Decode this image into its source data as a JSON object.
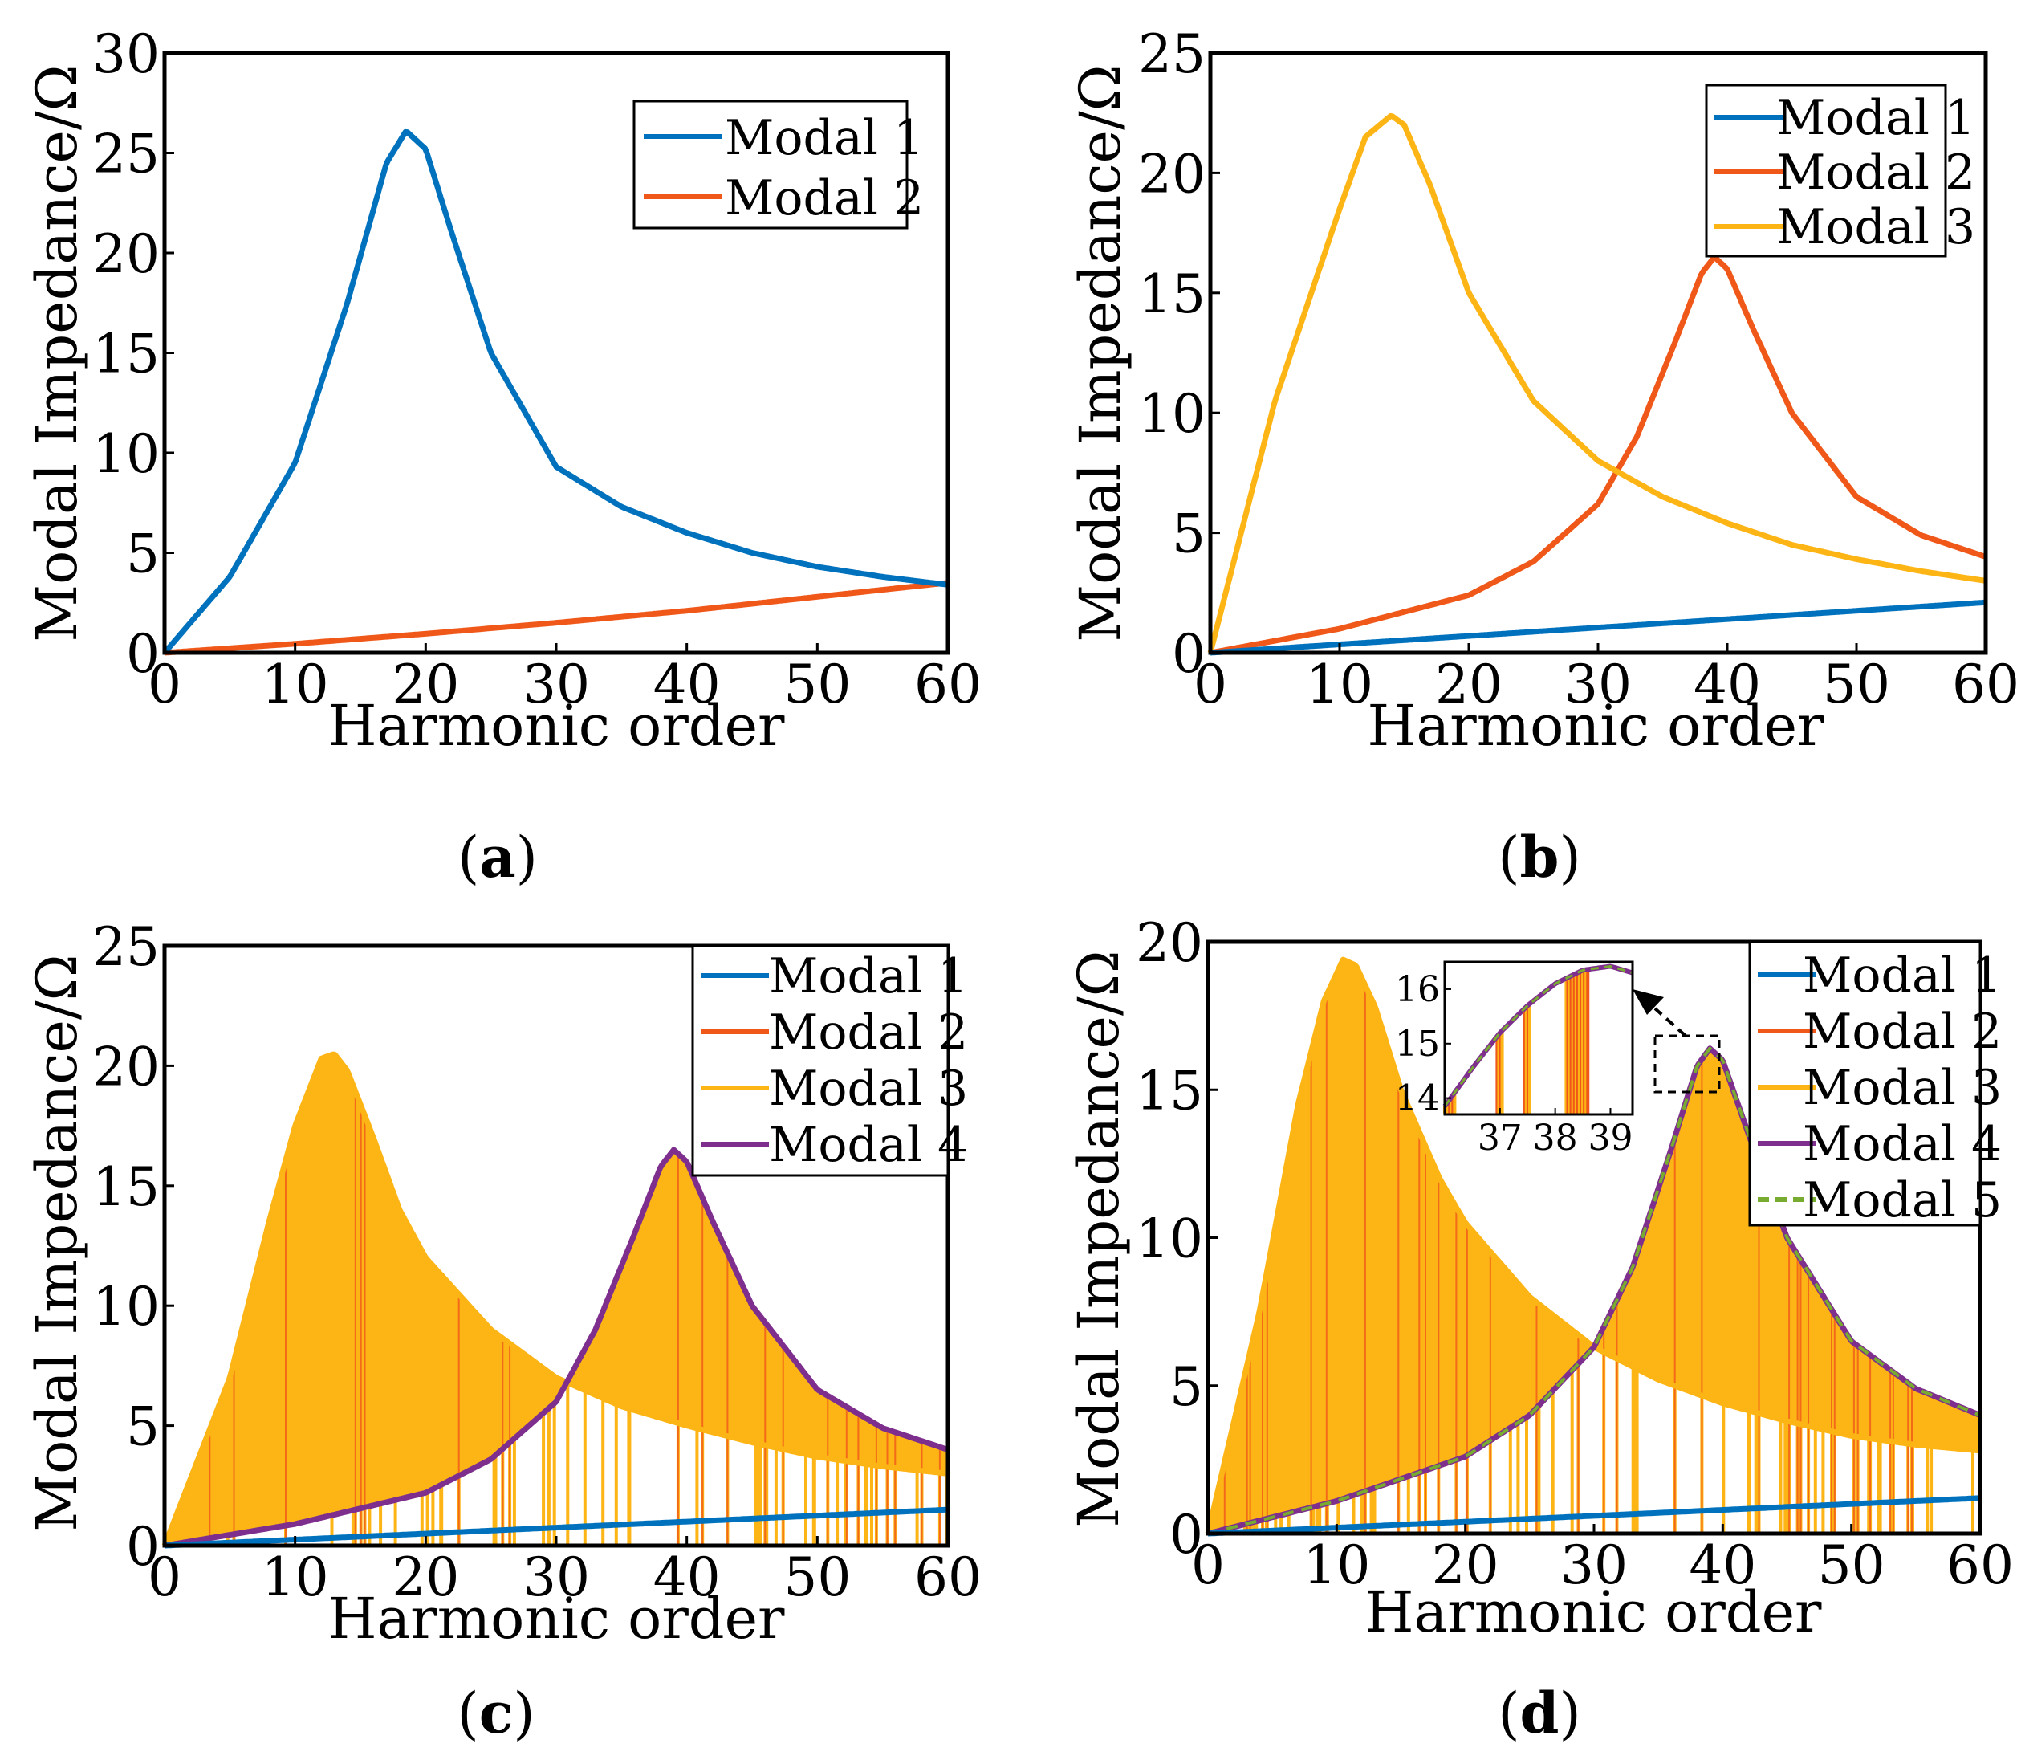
{
  "colors": {
    "modal1": "#0072BD",
    "modal2": "#F0581A",
    "modal3": "#FDB515",
    "modal4": "#7E2F8E",
    "modal5": "#77AC30"
  },
  "chart_data": [
    {
      "id": "a",
      "type": "line",
      "caption": "(a)",
      "caption_letter": "a",
      "xlabel": "Harmonic order",
      "ylabel": "Modal Impedance/Ω",
      "xlim": [
        0,
        60
      ],
      "ylim": [
        0,
        30
      ],
      "xticks": [
        0,
        10,
        20,
        30,
        40,
        50,
        60
      ],
      "yticks": [
        0,
        5,
        10,
        15,
        20,
        25,
        30
      ],
      "legend_position": "top-right",
      "series": [
        {
          "name": "Modal 1",
          "color_key": "modal1",
          "style": "solid",
          "x": [
            0,
            5,
            10,
            14,
            17,
            18.5,
            20,
            22,
            25,
            30,
            35,
            40,
            45,
            50,
            55,
            60
          ],
          "y": [
            0,
            3.8,
            9.5,
            17.5,
            24.5,
            26.1,
            25.2,
            21.0,
            15.0,
            9.3,
            7.3,
            6.0,
            5.0,
            4.3,
            3.8,
            3.4
          ]
        },
        {
          "name": "Modal 2",
          "color_key": "modal2",
          "style": "solid",
          "x": [
            0,
            10,
            20,
            30,
            40,
            50,
            60
          ],
          "y": [
            0,
            0.45,
            0.95,
            1.5,
            2.1,
            2.8,
            3.5
          ]
        }
      ]
    },
    {
      "id": "b",
      "type": "line",
      "caption": "(b)",
      "caption_letter": "b",
      "xlabel": "Harmonic order",
      "ylabel": "Modal Impedance/Ω",
      "xlim": [
        0,
        60
      ],
      "ylim": [
        0,
        25
      ],
      "xticks": [
        0,
        10,
        20,
        30,
        40,
        50,
        60
      ],
      "yticks": [
        0,
        5,
        10,
        15,
        20,
        25
      ],
      "legend_position": "top-right",
      "series": [
        {
          "name": "Modal 1",
          "color_key": "modal1",
          "style": "solid",
          "x": [
            0,
            60
          ],
          "y": [
            0,
            2.1
          ]
        },
        {
          "name": "Modal 2",
          "color_key": "modal2",
          "style": "solid",
          "x": [
            0,
            10,
            20,
            25,
            30,
            33,
            36,
            38,
            39,
            40,
            42,
            45,
            50,
            55,
            60
          ],
          "y": [
            0,
            1.0,
            2.4,
            3.8,
            6.2,
            9.0,
            13.0,
            15.8,
            16.5,
            16.0,
            13.5,
            10.0,
            6.5,
            4.9,
            4.0
          ]
        },
        {
          "name": "Modal 3",
          "color_key": "modal3",
          "style": "solid",
          "x": [
            0,
            5,
            10,
            12,
            14,
            15,
            17,
            20,
            25,
            30,
            35,
            40,
            45,
            50,
            55,
            60
          ],
          "y": [
            0,
            10.5,
            18.5,
            21.5,
            22.4,
            22.0,
            19.5,
            15.0,
            10.5,
            8.0,
            6.5,
            5.4,
            4.5,
            3.9,
            3.4,
            3.0
          ]
        }
      ]
    },
    {
      "id": "c",
      "type": "line",
      "caption": "(c)",
      "caption_letter": "c",
      "xlabel": "Harmonic order",
      "ylabel": "Modal Impedance/Ω",
      "xlim": [
        0,
        60
      ],
      "ylim": [
        0,
        25
      ],
      "xticks": [
        0,
        10,
        20,
        30,
        40,
        50,
        60
      ],
      "yticks": [
        0,
        5,
        10,
        15,
        20,
        25
      ],
      "legend_position": "top-right",
      "series": [
        {
          "name": "Modal 1",
          "color_key": "modal1",
          "style": "solid",
          "x": [
            0,
            60
          ],
          "y": [
            0,
            1.5
          ]
        },
        {
          "name": "Modal 2",
          "color_key": "modal2",
          "style": "solid",
          "x": [
            0,
            60
          ],
          "y": [
            0,
            0
          ]
        },
        {
          "name": "Modal 3",
          "color_key": "modal3",
          "style": "solid",
          "x": [
            0,
            5,
            8,
            10,
            12,
            13,
            14,
            16,
            18,
            20,
            25,
            30,
            35,
            40,
            45,
            50,
            55,
            60
          ],
          "y": [
            0,
            7.0,
            13.5,
            17.5,
            20.3,
            20.5,
            19.8,
            17.0,
            14.0,
            12.0,
            9.0,
            7.0,
            5.8,
            5.0,
            4.3,
            3.7,
            3.3,
            3.0
          ]
        },
        {
          "name": "Modal 4",
          "color_key": "modal4",
          "style": "solid",
          "x": [
            0,
            10,
            20,
            25,
            30,
            33,
            36,
            38,
            39,
            40,
            42,
            45,
            50,
            55,
            60
          ],
          "y": [
            0,
            0.9,
            2.2,
            3.6,
            6.0,
            9.0,
            13.0,
            15.8,
            16.5,
            16.0,
            13.5,
            10.0,
            6.5,
            4.9,
            4.0
          ]
        }
      ]
    },
    {
      "id": "d",
      "type": "line",
      "caption": "(d)",
      "caption_letter": "d",
      "xlabel": "Harmonic order",
      "ylabel": "Modal Impedance/Ω",
      "xlim": [
        0,
        60
      ],
      "ylim": [
        0,
        20
      ],
      "xticks": [
        0,
        10,
        20,
        30,
        40,
        50,
        60
      ],
      "yticks": [
        0,
        5,
        10,
        15,
        20
      ],
      "legend_position": "top-right",
      "series": [
        {
          "name": "Modal 1",
          "color_key": "modal1",
          "style": "solid",
          "x": [
            0,
            60
          ],
          "y": [
            0,
            1.2
          ]
        },
        {
          "name": "Modal 2",
          "color_key": "modal2",
          "style": "solid",
          "x": [
            0,
            60
          ],
          "y": [
            0,
            0
          ]
        },
        {
          "name": "Modal 3",
          "color_key": "modal3",
          "style": "solid",
          "x": [
            0,
            4,
            7,
            9,
            10.5,
            11.5,
            13,
            15,
            18,
            20,
            25,
            30,
            35,
            40,
            45,
            50,
            55,
            60
          ],
          "y": [
            0,
            7.5,
            14.5,
            18.0,
            19.4,
            19.2,
            17.8,
            15.0,
            12.0,
            10.5,
            8.0,
            6.3,
            5.2,
            4.4,
            3.8,
            3.3,
            3.0,
            2.8
          ]
        },
        {
          "name": "Modal 4",
          "color_key": "modal4",
          "style": "solid",
          "x": [
            0,
            10,
            20,
            25,
            30,
            33,
            36,
            38,
            39,
            40,
            42,
            45,
            50,
            55,
            60
          ],
          "y": [
            0,
            1.1,
            2.6,
            4.0,
            6.3,
            9.0,
            13.0,
            15.8,
            16.4,
            16.0,
            13.5,
            10.0,
            6.5,
            4.9,
            4.0
          ]
        },
        {
          "name": "Modal 5",
          "color_key": "modal5",
          "style": "dashed",
          "x": [
            0,
            10,
            20,
            25,
            30,
            33,
            36,
            38,
            39,
            40,
            42,
            45,
            50,
            55,
            60
          ],
          "y": [
            0,
            1.1,
            2.6,
            4.0,
            6.3,
            9.0,
            13.0,
            15.8,
            16.4,
            16.0,
            13.5,
            10.0,
            6.5,
            4.9,
            4.0
          ]
        }
      ],
      "inset": {
        "xlim": [
          36,
          39.4
        ],
        "ylim": [
          13.7,
          16.5
        ],
        "xticks": [
          37,
          38,
          39
        ],
        "yticks": [
          14,
          15,
          16
        ],
        "envelope": {
          "x": [
            36,
            36.5,
            37,
            37.5,
            38,
            38.5,
            39,
            39.4
          ],
          "y": [
            13.85,
            14.55,
            15.2,
            15.7,
            16.1,
            16.35,
            16.42,
            16.3
          ]
        }
      }
    }
  ]
}
